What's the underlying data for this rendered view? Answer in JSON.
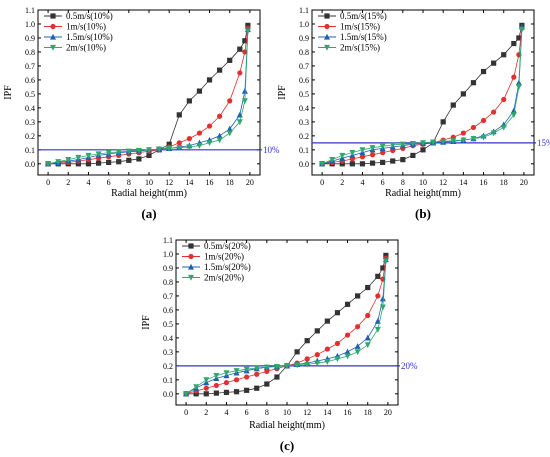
{
  "chart_data": [
    {
      "type": "line",
      "panel_label": "(a)",
      "xlabel": "Radial height(mm)",
      "ylabel": "IPF",
      "xlim": [
        -1,
        21
      ],
      "ylim": [
        -0.08,
        1.1
      ],
      "x_ticks": [
        "0",
        "2",
        "4",
        "6",
        "8",
        "10",
        "12",
        "14",
        "16",
        "18",
        "20"
      ],
      "y_ticks": [
        "0.0",
        "0.1",
        "0.2",
        "0.3",
        "0.4",
        "0.5",
        "0.6",
        "0.7",
        "0.8",
        "0.9",
        "1.0",
        "1.1"
      ],
      "reference_line": {
        "value": 0.1,
        "label": "10%",
        "color": "#3333cc"
      },
      "legend_position": "top-left",
      "series": [
        {
          "name": "0.5m/s(10%)",
          "marker": "square",
          "color": "#333333",
          "x": [
            0,
            1,
            2,
            3,
            4,
            5,
            6,
            7,
            8,
            9,
            10,
            11,
            12,
            13,
            14,
            15,
            16,
            17,
            18,
            19,
            19.5,
            19.8
          ],
          "y": [
            0,
            0,
            0,
            0,
            0,
            0.005,
            0.01,
            0.015,
            0.025,
            0.035,
            0.06,
            0.1,
            0.14,
            0.35,
            0.45,
            0.52,
            0.6,
            0.67,
            0.74,
            0.82,
            0.88,
            0.99
          ]
        },
        {
          "name": "1m/s(10%)",
          "marker": "circle",
          "color": "#e03030",
          "x": [
            0,
            1,
            2,
            3,
            4,
            5,
            6,
            7,
            8,
            9,
            10,
            11,
            12,
            13,
            14,
            15,
            16,
            17,
            18,
            19,
            19.5,
            19.8
          ],
          "y": [
            0,
            0.005,
            0.01,
            0.02,
            0.03,
            0.04,
            0.05,
            0.06,
            0.07,
            0.08,
            0.09,
            0.1,
            0.12,
            0.15,
            0.18,
            0.22,
            0.27,
            0.34,
            0.45,
            0.65,
            0.8,
            0.97
          ]
        },
        {
          "name": "1.5m/s(10%)",
          "marker": "triangle-up",
          "color": "#2060b0",
          "x": [
            0,
            1,
            2,
            3,
            4,
            5,
            6,
            7,
            8,
            9,
            10,
            11,
            12,
            13,
            14,
            15,
            16,
            17,
            18,
            19,
            19.5,
            19.8
          ],
          "y": [
            0,
            0.01,
            0.02,
            0.03,
            0.045,
            0.06,
            0.07,
            0.08,
            0.085,
            0.09,
            0.1,
            0.105,
            0.11,
            0.12,
            0.13,
            0.15,
            0.17,
            0.2,
            0.25,
            0.35,
            0.52,
            0.96
          ]
        },
        {
          "name": "2m/s(10%)",
          "marker": "triangle-down",
          "color": "#2ea86e",
          "x": [
            0,
            1,
            2,
            3,
            4,
            5,
            6,
            7,
            8,
            9,
            10,
            11,
            12,
            13,
            14,
            15,
            16,
            17,
            18,
            19,
            19.5,
            19.8
          ],
          "y": [
            0,
            0.015,
            0.03,
            0.045,
            0.06,
            0.07,
            0.08,
            0.085,
            0.09,
            0.095,
            0.1,
            0.105,
            0.11,
            0.115,
            0.12,
            0.13,
            0.15,
            0.17,
            0.22,
            0.3,
            0.45,
            0.95
          ]
        }
      ]
    },
    {
      "type": "line",
      "panel_label": "(b)",
      "xlabel": "Radial height(mm)",
      "ylabel": "IPF",
      "xlim": [
        -1,
        21
      ],
      "ylim": [
        -0.08,
        1.1
      ],
      "x_ticks": [
        "0",
        "2",
        "4",
        "6",
        "8",
        "10",
        "12",
        "14",
        "16",
        "18",
        "20"
      ],
      "y_ticks": [
        "0.0",
        "0.1",
        "0.2",
        "0.3",
        "0.4",
        "0.5",
        "0.6",
        "0.7",
        "0.8",
        "0.9",
        "1.0",
        "1.1"
      ],
      "reference_line": {
        "value": 0.15,
        "label": "15%",
        "color": "#3333cc"
      },
      "legend_position": "top-left",
      "series": [
        {
          "name": "0.5m/s(15%)",
          "marker": "square",
          "color": "#333333",
          "x": [
            0,
            1,
            2,
            3,
            4,
            5,
            6,
            7,
            8,
            9,
            10,
            11,
            12,
            13,
            14,
            15,
            16,
            17,
            18,
            19,
            19.5,
            19.8
          ],
          "y": [
            0,
            0,
            0,
            0,
            0,
            0.005,
            0.01,
            0.02,
            0.03,
            0.06,
            0.1,
            0.15,
            0.3,
            0.42,
            0.5,
            0.58,
            0.66,
            0.72,
            0.78,
            0.86,
            0.9,
            0.99
          ]
        },
        {
          "name": "1m/s(15%)",
          "marker": "circle",
          "color": "#e03030",
          "x": [
            0,
            1,
            2,
            3,
            4,
            5,
            6,
            7,
            8,
            9,
            10,
            11,
            12,
            13,
            14,
            15,
            16,
            17,
            18,
            19,
            19.5,
            19.8
          ],
          "y": [
            0,
            0.01,
            0.02,
            0.035,
            0.05,
            0.065,
            0.08,
            0.095,
            0.11,
            0.13,
            0.14,
            0.15,
            0.17,
            0.19,
            0.22,
            0.26,
            0.31,
            0.37,
            0.46,
            0.62,
            0.78,
            0.97
          ]
        },
        {
          "name": "1.5m/s(15%)",
          "marker": "triangle-up",
          "color": "#2060b0",
          "x": [
            0,
            1,
            2,
            3,
            4,
            5,
            6,
            7,
            8,
            9,
            10,
            11,
            12,
            13,
            14,
            15,
            16,
            17,
            18,
            19,
            19.5,
            19.8
          ],
          "y": [
            0,
            0.02,
            0.04,
            0.06,
            0.08,
            0.1,
            0.11,
            0.12,
            0.13,
            0.14,
            0.145,
            0.15,
            0.155,
            0.16,
            0.17,
            0.18,
            0.2,
            0.23,
            0.28,
            0.38,
            0.58,
            0.98
          ]
        },
        {
          "name": "2m/s(15%)",
          "marker": "triangle-down",
          "color": "#2ea86e",
          "x": [
            0,
            1,
            2,
            3,
            4,
            5,
            6,
            7,
            8,
            9,
            10,
            11,
            12,
            13,
            14,
            15,
            16,
            17,
            18,
            19,
            19.5,
            19.8
          ],
          "y": [
            0,
            0.03,
            0.06,
            0.08,
            0.1,
            0.115,
            0.125,
            0.135,
            0.14,
            0.145,
            0.15,
            0.155,
            0.16,
            0.165,
            0.17,
            0.18,
            0.19,
            0.22,
            0.26,
            0.35,
            0.55,
            0.96
          ]
        }
      ]
    },
    {
      "type": "line",
      "panel_label": "(c)",
      "xlabel": "Radial height(mm)",
      "ylabel": "IPF",
      "xlim": [
        -1,
        21
      ],
      "ylim": [
        -0.08,
        1.1
      ],
      "x_ticks": [
        "0",
        "2",
        "4",
        "6",
        "8",
        "10",
        "12",
        "14",
        "16",
        "18",
        "20"
      ],
      "y_ticks": [
        "0.0",
        "0.1",
        "0.2",
        "0.3",
        "0.4",
        "0.5",
        "0.6",
        "0.7",
        "0.8",
        "0.9",
        "1.0",
        "1.1"
      ],
      "reference_line": {
        "value": 0.2,
        "label": "20%",
        "color": "#3333cc"
      },
      "legend_position": "top-left",
      "series": [
        {
          "name": "0.5m/s(20%)",
          "marker": "square",
          "color": "#333333",
          "x": [
            0,
            1,
            2,
            3,
            4,
            5,
            6,
            7,
            8,
            9,
            10,
            11,
            12,
            13,
            14,
            15,
            16,
            17,
            18,
            19,
            19.5,
            19.8
          ],
          "y": [
            0,
            0,
            0,
            0.005,
            0.01,
            0.015,
            0.025,
            0.04,
            0.07,
            0.12,
            0.2,
            0.3,
            0.38,
            0.45,
            0.52,
            0.58,
            0.64,
            0.7,
            0.76,
            0.84,
            0.9,
            0.99
          ]
        },
        {
          "name": "1m/s(20%)",
          "marker": "circle",
          "color": "#e03030",
          "x": [
            0,
            1,
            2,
            3,
            4,
            5,
            6,
            7,
            8,
            9,
            10,
            11,
            12,
            13,
            14,
            15,
            16,
            17,
            18,
            19,
            19.5,
            19.8
          ],
          "y": [
            0,
            0.02,
            0.04,
            0.06,
            0.08,
            0.1,
            0.12,
            0.14,
            0.16,
            0.18,
            0.2,
            0.22,
            0.25,
            0.28,
            0.32,
            0.36,
            0.42,
            0.48,
            0.56,
            0.7,
            0.82,
            0.97
          ]
        },
        {
          "name": "1.5m/s(20%)",
          "marker": "triangle-up",
          "color": "#2060b0",
          "x": [
            0,
            1,
            2,
            3,
            4,
            5,
            6,
            7,
            8,
            9,
            10,
            11,
            12,
            13,
            14,
            15,
            16,
            17,
            18,
            19,
            19.5,
            19.8
          ],
          "y": [
            0,
            0.04,
            0.08,
            0.11,
            0.13,
            0.15,
            0.165,
            0.18,
            0.19,
            0.195,
            0.2,
            0.21,
            0.22,
            0.235,
            0.25,
            0.27,
            0.3,
            0.34,
            0.4,
            0.52,
            0.68,
            0.96
          ]
        },
        {
          "name": "2m/s(20%)",
          "marker": "triangle-down",
          "color": "#2ea86e",
          "x": [
            0,
            1,
            2,
            3,
            4,
            5,
            6,
            7,
            8,
            9,
            10,
            11,
            12,
            13,
            14,
            15,
            16,
            17,
            18,
            19,
            19.5,
            19.8
          ],
          "y": [
            0,
            0.05,
            0.1,
            0.13,
            0.15,
            0.165,
            0.175,
            0.185,
            0.19,
            0.195,
            0.2,
            0.205,
            0.21,
            0.22,
            0.23,
            0.25,
            0.27,
            0.3,
            0.35,
            0.46,
            0.62,
            0.95
          ]
        }
      ]
    }
  ]
}
